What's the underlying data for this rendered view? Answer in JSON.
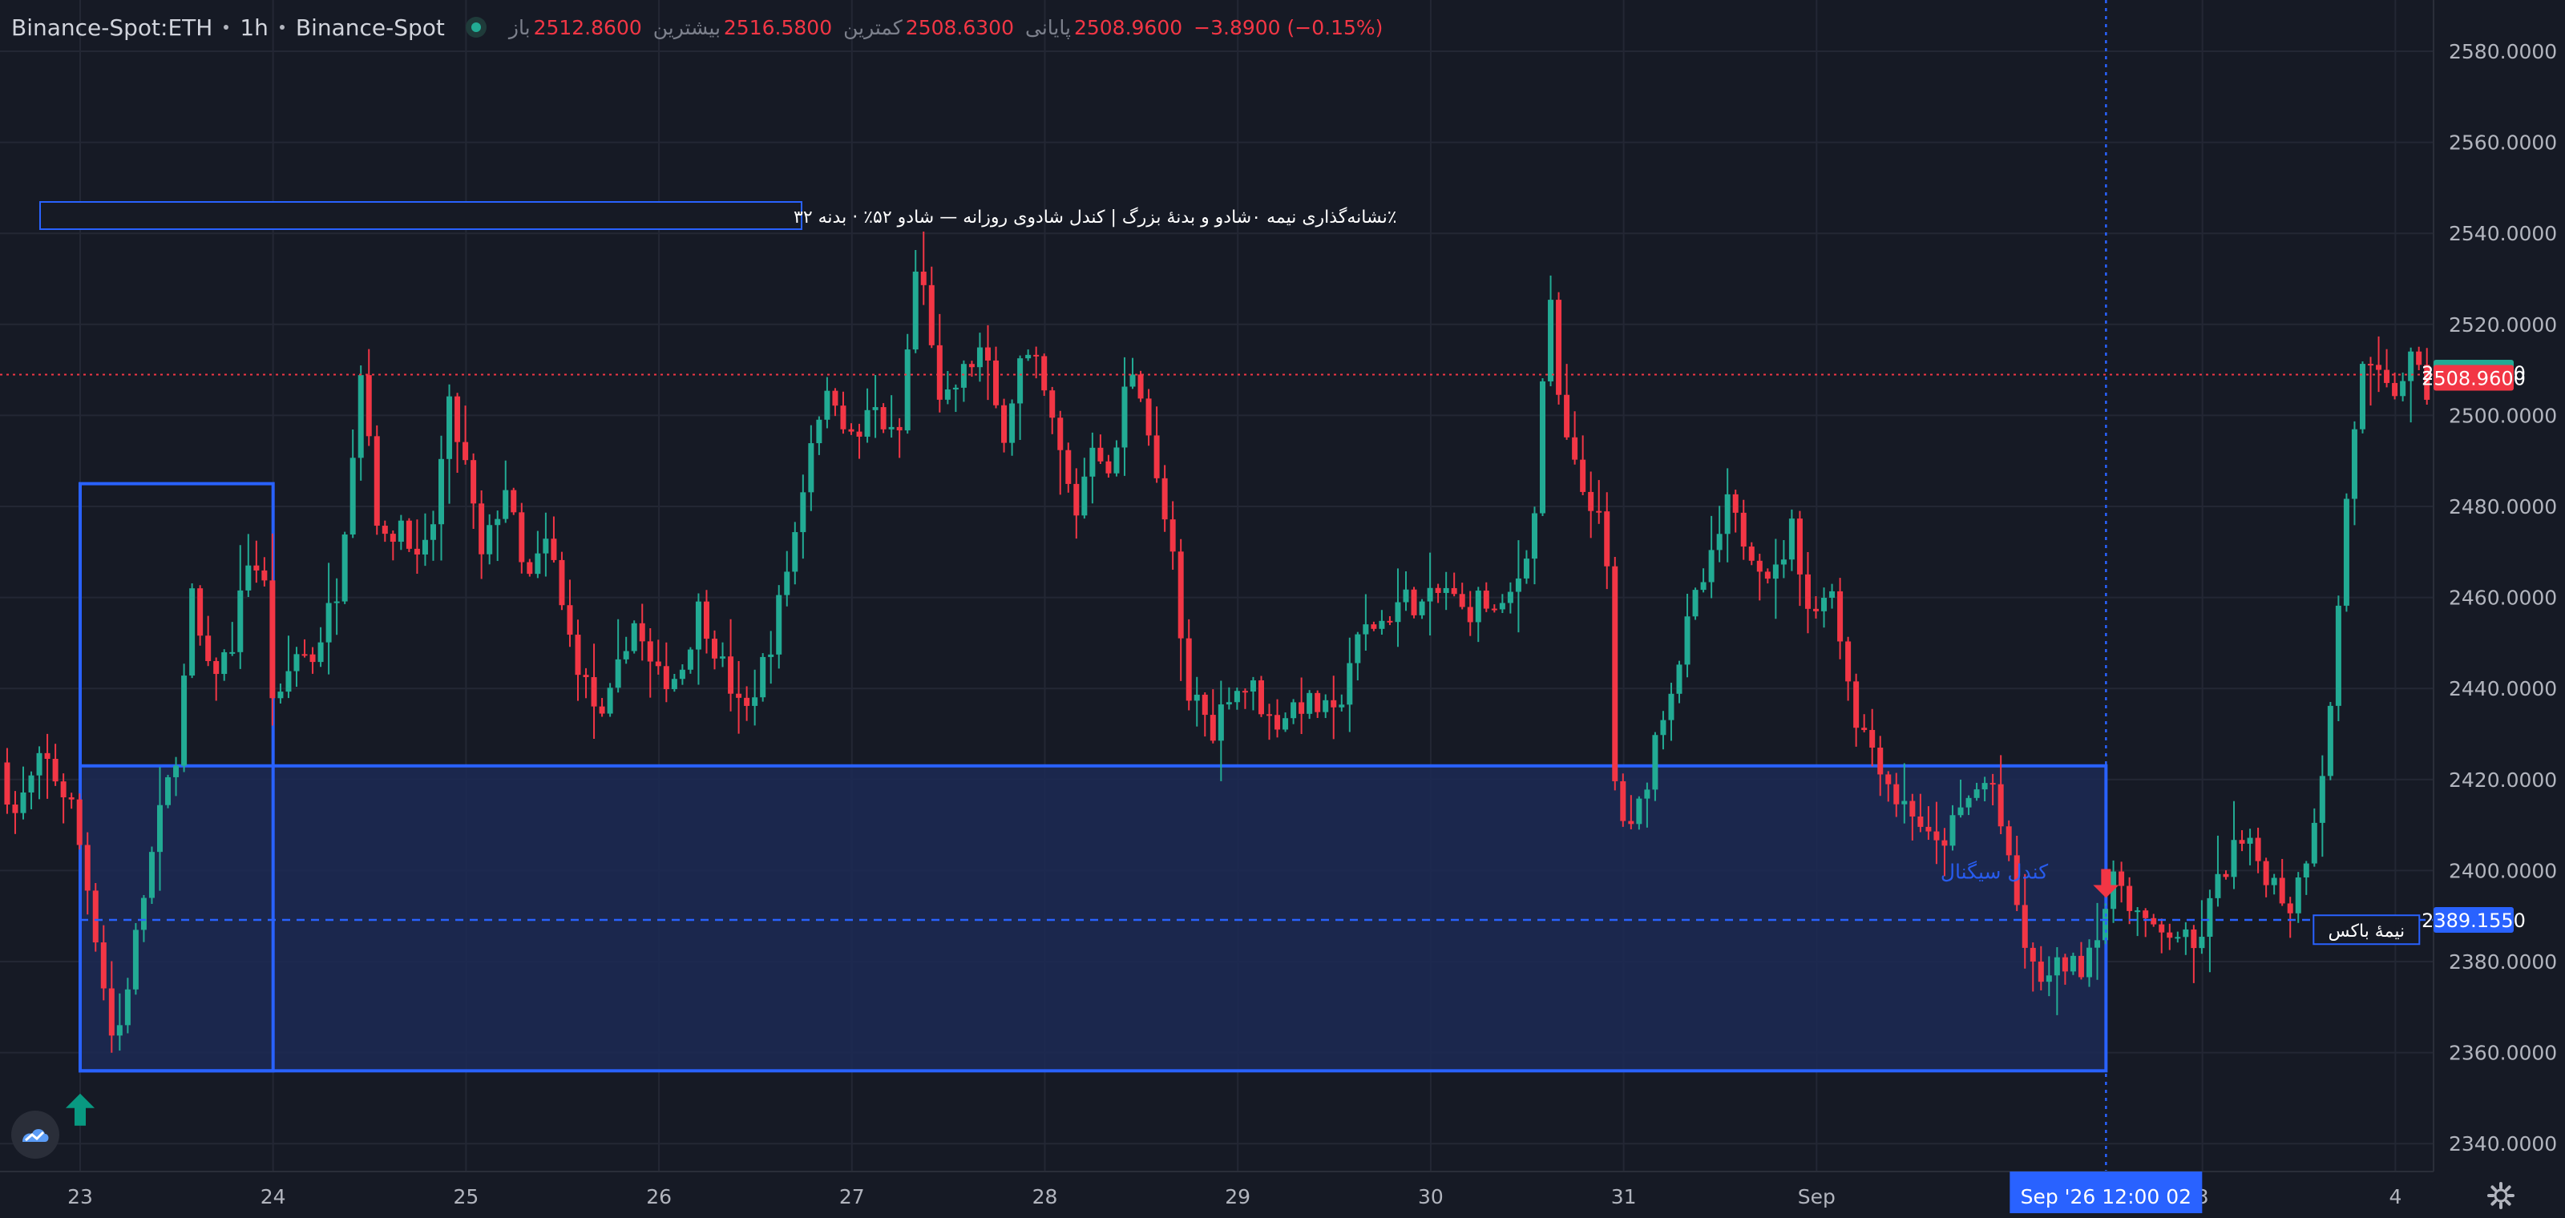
{
  "header": {
    "symbol": "Binance-Spot:ETH",
    "interval": "1h",
    "exchange": "Binance-Spot",
    "ohlc": [
      {
        "label": "باز",
        "value": "2512.8600"
      },
      {
        "label": "بیشترین",
        "value": "2516.5800"
      },
      {
        "label": "کمترین",
        "value": "2508.6300"
      },
      {
        "label": "پایانی",
        "value": "2508.9600"
      }
    ],
    "change": "−3.8900 (−0.15%)"
  },
  "chart_data": {
    "type": "candlestick",
    "title": "٪نشانه‌گذاری نیمه ۰شادو و بدنهٔ بزرگ | کندل شادوی روزانه — شادو ۵۲٪ · بدنه ۳۲",
    "y_ticks": [
      "2580.0000",
      "2560.0000",
      "2540.0000",
      "2520.0000",
      "2500.0000",
      "2480.0000",
      "2460.0000",
      "2440.0000",
      "2420.0000",
      "2400.0000",
      "2380.0000",
      "2360.0000",
      "2340.0000"
    ],
    "y_tick_values": [
      2580,
      2560,
      2540,
      2520,
      2500,
      2480,
      2460,
      2440,
      2420,
      2400,
      2380,
      2360,
      2340
    ],
    "ylim": [
      2334,
      2585
    ],
    "x_ticks": [
      "23",
      "24",
      "25",
      "26",
      "27",
      "28",
      "29",
      "30",
      "31",
      "Sep",
      "3",
      "4"
    ],
    "x_tick_days": [
      0,
      1,
      2,
      3,
      4,
      5,
      6,
      7,
      8,
      9,
      11,
      12
    ],
    "price_tags": [
      {
        "value": "2509.4000",
        "color": "#22ab94"
      },
      {
        "value": "2508.9600",
        "color": "#f23645"
      },
      {
        "value": "2389.1550",
        "color": "#2962ff"
      }
    ],
    "last_price": 2508.96,
    "midline_price": 2389.155,
    "crosshair": {
      "day": 10.5,
      "label": "Sep '26   12:00 02"
    },
    "outer_box": {
      "day_from": 0,
      "day_to": 1,
      "price_top": 2485,
      "price_bottom": 2356
    },
    "zone_box": {
      "day_from": 0,
      "day_to": 10.5,
      "price_top": 2423,
      "price_bottom": 2356
    },
    "labels": [
      {
        "text": "کندل سیگنال",
        "day": 10.2,
        "price": 2400
      },
      {
        "text": "نیمهٔ باکس",
        "day": 11.85,
        "price": 2387
      }
    ],
    "signals": [
      {
        "type": "up-arrow",
        "day": 0,
        "price": 2351
      },
      {
        "type": "down-arrow",
        "day": 10.5,
        "price": 2394
      }
    ],
    "anchors": [
      [
        -0.42,
        2430
      ],
      [
        -0.3,
        2412
      ],
      [
        -0.15,
        2425
      ],
      [
        0.0,
        2414
      ],
      [
        0.1,
        2392
      ],
      [
        0.22,
        2360
      ],
      [
        0.3,
        2378
      ],
      [
        0.35,
        2390
      ],
      [
        0.45,
        2411
      ],
      [
        0.55,
        2428
      ],
      [
        0.62,
        2460
      ],
      [
        0.7,
        2443
      ],
      [
        0.82,
        2448
      ],
      [
        0.92,
        2470
      ],
      [
        1.0,
        2462
      ],
      [
        1.05,
        2432
      ],
      [
        1.15,
        2448
      ],
      [
        1.25,
        2447
      ],
      [
        1.38,
        2463
      ],
      [
        1.5,
        2512
      ],
      [
        1.6,
        2470
      ],
      [
        1.72,
        2478
      ],
      [
        1.8,
        2465
      ],
      [
        1.88,
        2478
      ],
      [
        1.95,
        2502
      ],
      [
        2.05,
        2487
      ],
      [
        2.12,
        2468
      ],
      [
        2.25,
        2485
      ],
      [
        2.35,
        2462
      ],
      [
        2.47,
        2473
      ],
      [
        2.55,
        2455
      ],
      [
        2.65,
        2442
      ],
      [
        2.75,
        2432
      ],
      [
        2.82,
        2442
      ],
      [
        2.9,
        2456
      ],
      [
        3.02,
        2442
      ],
      [
        3.15,
        2443
      ],
      [
        3.25,
        2458
      ],
      [
        3.38,
        2444
      ],
      [
        3.48,
        2433
      ],
      [
        3.62,
        2450
      ],
      [
        3.75,
        2475
      ],
      [
        3.85,
        2500
      ],
      [
        3.95,
        2505
      ],
      [
        4.05,
        2493
      ],
      [
        4.15,
        2502
      ],
      [
        4.28,
        2493
      ],
      [
        4.38,
        2535
      ],
      [
        4.45,
        2519
      ],
      [
        4.5,
        2500
      ],
      [
        4.6,
        2508
      ],
      [
        4.72,
        2515
      ],
      [
        4.82,
        2495
      ],
      [
        4.92,
        2513
      ],
      [
        5.0,
        2510
      ],
      [
        5.1,
        2495
      ],
      [
        5.2,
        2478
      ],
      [
        5.3,
        2497
      ],
      [
        5.38,
        2484
      ],
      [
        5.48,
        2512
      ],
      [
        5.55,
        2505
      ],
      [
        5.62,
        2485
      ],
      [
        5.7,
        2470
      ],
      [
        5.78,
        2435
      ],
      [
        5.82,
        2440
      ],
      [
        5.9,
        2430
      ],
      [
        6.0,
        2440
      ],
      [
        6.12,
        2440
      ],
      [
        6.22,
        2432
      ],
      [
        6.35,
        2437
      ],
      [
        6.45,
        2436
      ],
      [
        6.55,
        2433
      ],
      [
        6.62,
        2446
      ],
      [
        6.7,
        2453
      ],
      [
        6.8,
        2455
      ],
      [
        6.9,
        2460
      ],
      [
        7.0,
        2458
      ],
      [
        7.12,
        2462
      ],
      [
        7.22,
        2456
      ],
      [
        7.3,
        2460
      ],
      [
        7.4,
        2455
      ],
      [
        7.5,
        2465
      ],
      [
        7.58,
        2478
      ],
      [
        7.65,
        2529
      ],
      [
        7.72,
        2497
      ],
      [
        7.82,
        2484
      ],
      [
        7.9,
        2480
      ],
      [
        7.96,
        2464
      ],
      [
        8.0,
        2415
      ],
      [
        8.08,
        2408
      ],
      [
        8.15,
        2418
      ],
      [
        8.22,
        2432
      ],
      [
        8.32,
        2445
      ],
      [
        8.4,
        2458
      ],
      [
        8.5,
        2468
      ],
      [
        8.58,
        2480
      ],
      [
        8.65,
        2474
      ],
      [
        8.72,
        2470
      ],
      [
        8.82,
        2464
      ],
      [
        8.92,
        2476
      ],
      [
        8.98,
        2462
      ],
      [
        9.02,
        2453
      ],
      [
        9.1,
        2466
      ],
      [
        9.18,
        2448
      ],
      [
        9.25,
        2433
      ],
      [
        9.35,
        2426
      ],
      [
        9.45,
        2416
      ],
      [
        9.55,
        2413
      ],
      [
        9.65,
        2404
      ],
      [
        9.75,
        2410
      ],
      [
        9.85,
        2417
      ],
      [
        9.95,
        2420
      ],
      [
        10.05,
        2398
      ],
      [
        10.15,
        2378
      ],
      [
        10.25,
        2376
      ],
      [
        10.32,
        2380
      ],
      [
        10.4,
        2378
      ],
      [
        10.5,
        2388
      ],
      [
        10.6,
        2399
      ],
      [
        10.7,
        2391
      ],
      [
        10.8,
        2385
      ],
      [
        10.9,
        2387
      ],
      [
        11.0,
        2382
      ],
      [
        11.12,
        2397
      ],
      [
        11.22,
        2406
      ],
      [
        11.3,
        2404
      ],
      [
        11.4,
        2398
      ],
      [
        11.5,
        2392
      ],
      [
        11.6,
        2407
      ],
      [
        11.7,
        2432
      ],
      [
        11.78,
        2478
      ],
      [
        11.86,
        2510
      ],
      [
        11.94,
        2508
      ],
      [
        12.02,
        2504
      ],
      [
        12.12,
        2512
      ],
      [
        12.2,
        2505
      ],
      [
        12.3,
        2503
      ],
      [
        12.42,
        2509
      ]
    ]
  }
}
